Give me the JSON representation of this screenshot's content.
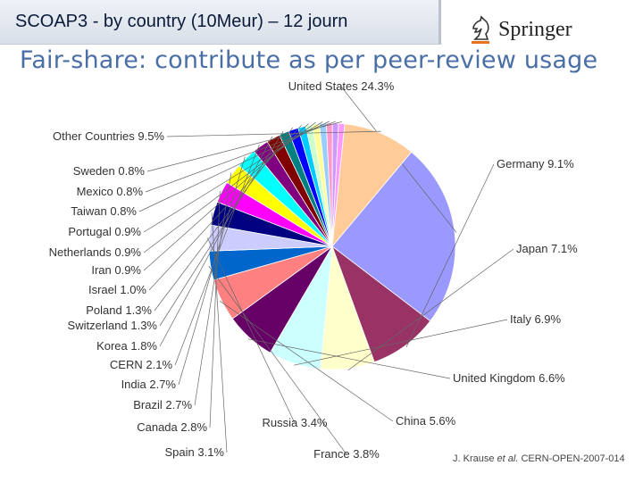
{
  "header": {
    "title": "SCOAP3 - by country (10Meur) – 12 journ",
    "subtitle": "Fair-share: contribute as per peer-review usage"
  },
  "brand": {
    "name": "Springer"
  },
  "citation": {
    "authors": "J. Krause",
    "etal": "et al.",
    "ref": "CERN-OPEN-2007-014"
  },
  "chart_data": {
    "type": "pie",
    "slices": [
      {
        "label": "United States 24.3%",
        "value": 24.3,
        "color": "#9999ff"
      },
      {
        "label": "Germany 9.1%",
        "value": 9.1,
        "color": "#993366"
      },
      {
        "label": "Japan 7.1%",
        "value": 7.1,
        "color": "#ffffcc"
      },
      {
        "label": "Italy 6.9%",
        "value": 6.9,
        "color": "#ccffff"
      },
      {
        "label": "United Kingdom 6.6%",
        "value": 6.6,
        "color": "#660066"
      },
      {
        "label": "China 5.6%",
        "value": 5.6,
        "color": "#ff8080"
      },
      {
        "label": "France 3.8%",
        "value": 3.8,
        "color": "#0066cc"
      },
      {
        "label": "Russia 3.4%",
        "value": 3.4,
        "color": "#ccccff"
      },
      {
        "label": "Spain 3.1%",
        "value": 3.1,
        "color": "#000080"
      },
      {
        "label": "Canada 2.8%",
        "value": 2.8,
        "color": "#ff00ff"
      },
      {
        "label": "Brazil 2.7%",
        "value": 2.7,
        "color": "#ffff00"
      },
      {
        "label": "India 2.7%",
        "value": 2.7,
        "color": "#00ffff"
      },
      {
        "label": "CERN 2.1%",
        "value": 2.1,
        "color": "#800080"
      },
      {
        "label": "Korea 1.8%",
        "value": 1.8,
        "color": "#800000"
      },
      {
        "label": "Switzerland 1.3%",
        "value": 1.3,
        "color": "#008080"
      },
      {
        "label": "Poland 1.3%",
        "value": 1.3,
        "color": "#0000ff"
      },
      {
        "label": "Israel 1.0%",
        "value": 1.0,
        "color": "#00ccff"
      },
      {
        "label": "Iran 0.9%",
        "value": 0.9,
        "color": "#ccffcc"
      },
      {
        "label": "Netherlands 0.9%",
        "value": 0.9,
        "color": "#ffff99"
      },
      {
        "label": "Portugal 0.9%",
        "value": 0.9,
        "color": "#99ccff"
      },
      {
        "label": "Taiwan 0.8%",
        "value": 0.8,
        "color": "#ff99cc"
      },
      {
        "label": "Mexico 0.8%",
        "value": 0.8,
        "color": "#cc99ff"
      },
      {
        "label": "Sweden 0.8%",
        "value": 0.8,
        "color": "#ff99ff"
      },
      {
        "label": "Other Countries 9.5%",
        "value": 9.5,
        "color": "#ffcc99"
      }
    ]
  }
}
